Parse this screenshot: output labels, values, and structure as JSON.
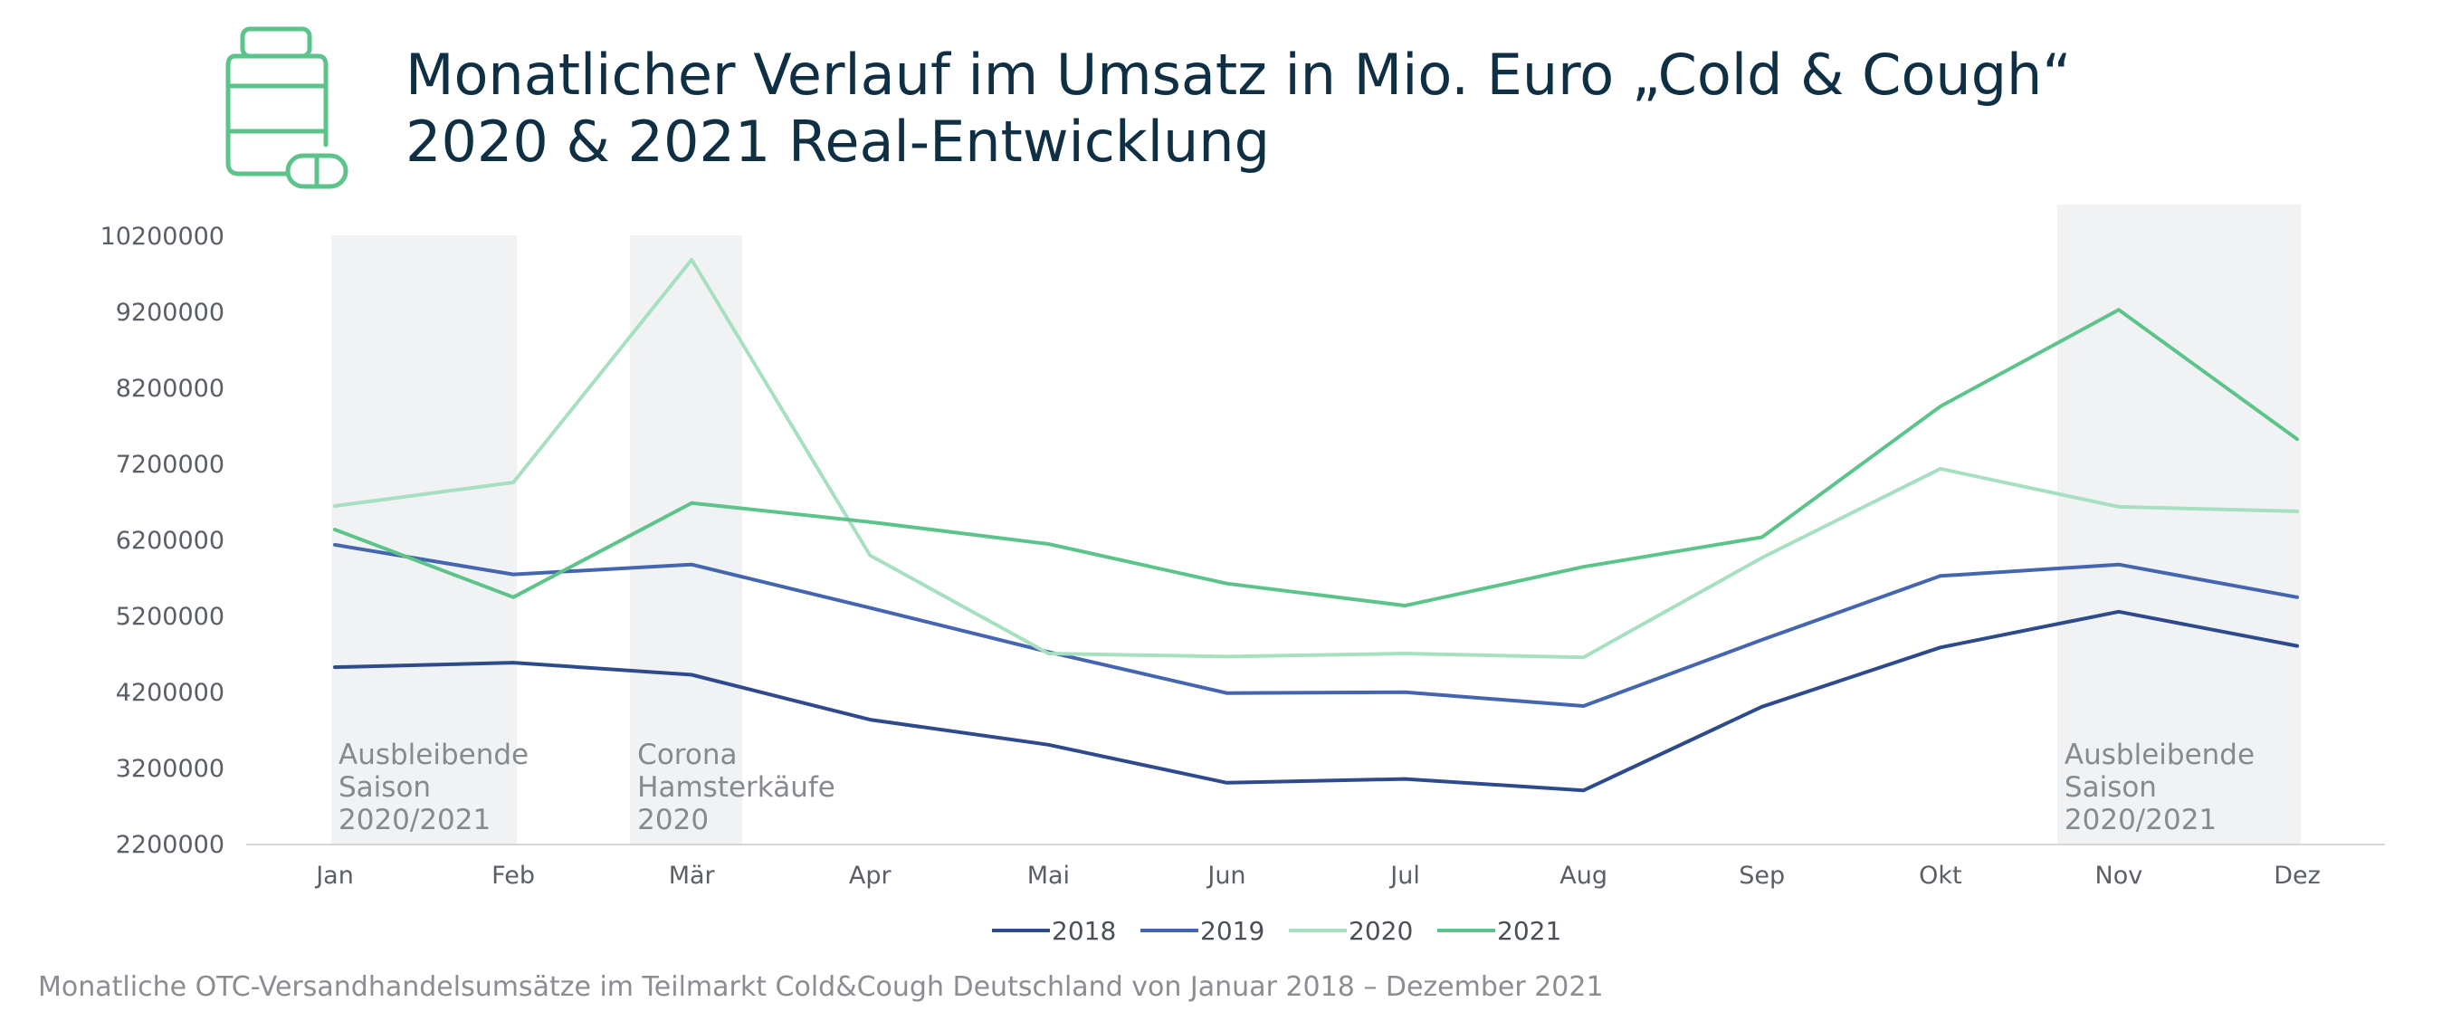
{
  "header": {
    "title_line1": "Monatlicher Verlauf im Umsatz in Mio. Euro „Cold & Cough“",
    "title_line2": "2020 & 2021 Real-Entwicklung",
    "icon": "medicine-bottle-capsule-icon",
    "icon_color": "#5cc48a"
  },
  "caption": "Monatliche OTC-Versandhandelsumsätze im Teilmarkt Cold&Cough Deutschland von Januar 2018 – Dezember 2021",
  "chart_data": {
    "type": "line",
    "categories": [
      "Jan",
      "Feb",
      "Mär",
      "Apr",
      "Mai",
      "Jun",
      "Jul",
      "Aug",
      "Sep",
      "Okt",
      "Nov",
      "Dez"
    ],
    "ylim": [
      2200000,
      10200000
    ],
    "yticks": [
      "10200000",
      "9200000",
      "8200000",
      "7200000",
      "6200000",
      "5200000",
      "4200000",
      "3200000",
      "2200000"
    ],
    "ytick_values": [
      10200000,
      9200000,
      8200000,
      7200000,
      6200000,
      5200000,
      4200000,
      3200000,
      2200000
    ],
    "grid": false,
    "legend_position": "bottom-center",
    "series": [
      {
        "name": "2018",
        "color": "#2c4a8c",
        "values": [
          4520000,
          4580000,
          4420000,
          3830000,
          3500000,
          3000000,
          3050000,
          2900000,
          4000000,
          4780000,
          5250000,
          4800000
        ]
      },
      {
        "name": "2019",
        "color": "#4466b0",
        "values": [
          6130000,
          5740000,
          5870000,
          5300000,
          4720000,
          4180000,
          4190000,
          4010000,
          4880000,
          5720000,
          5870000,
          5440000
        ]
      },
      {
        "name": "2020",
        "color": "#a6e0c0",
        "values": [
          6640000,
          6950000,
          9880000,
          5990000,
          4700000,
          4660000,
          4700000,
          4650000,
          5960000,
          7130000,
          6630000,
          6570000
        ]
      },
      {
        "name": "2021",
        "color": "#5cc48a",
        "values": [
          6330000,
          5440000,
          6680000,
          6430000,
          6140000,
          5620000,
          5330000,
          5840000,
          6230000,
          7950000,
          9220000,
          7520000
        ]
      }
    ],
    "highlight_color": "#f1f2f3",
    "annotations": [
      {
        "lines": [
          "Ausbleibende",
          "Saison",
          "2020/2021"
        ],
        "from_month": "Jan",
        "to_month": "Feb"
      },
      {
        "lines": [
          "Corona",
          "Hamsterkäufe",
          "2020"
        ],
        "from_month": "Mär",
        "to_month": "Mär"
      },
      {
        "lines": [
          "Ausbleibende",
          "Saison",
          "2020/2021"
        ],
        "from_month": "Nov",
        "to_month": "Dez"
      }
    ]
  }
}
